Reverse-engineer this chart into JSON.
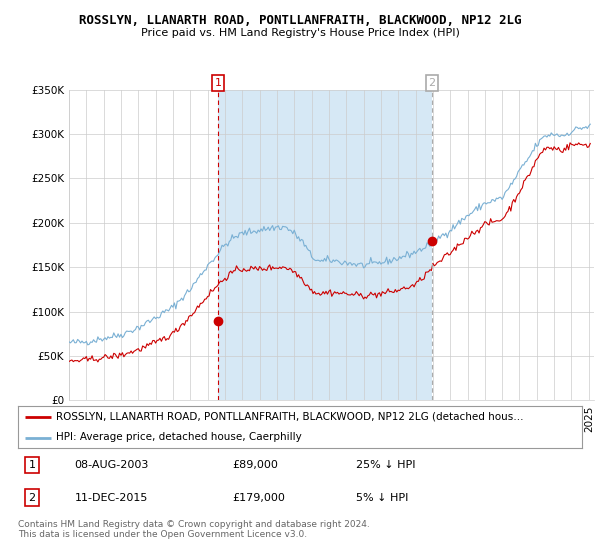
{
  "title": "ROSSLYN, LLANARTH ROAD, PONTLLANFRAITH, BLACKWOOD, NP12 2LG",
  "subtitle": "Price paid vs. HM Land Registry's House Price Index (HPI)",
  "legend_line1": "ROSSLYN, LLANARTH ROAD, PONTLLANFRAITH, BLACKWOOD, NP12 2LG (detached hous…",
  "legend_line2": "HPI: Average price, detached house, Caerphilly",
  "annotation1_label": "1",
  "annotation1_date": "08-AUG-2003",
  "annotation1_price": "£89,000",
  "annotation1_hpi": "25% ↓ HPI",
  "annotation1_year": 2003.6,
  "annotation1_value": 89000,
  "annotation2_label": "2",
  "annotation2_date": "11-DEC-2015",
  "annotation2_price": "£179,000",
  "annotation2_hpi": "5% ↓ HPI",
  "annotation2_year": 2015.95,
  "annotation2_value": 179000,
  "ylabel_max": 350000,
  "hpi_color": "#7ab0d4",
  "price_color": "#cc0000",
  "vline1_color": "#cc0000",
  "vline2_color": "#aaaaaa",
  "shade_color": "#d6e8f5",
  "background_color": "#ffffff",
  "plot_bg_color": "#ffffff",
  "grid_color": "#cccccc",
  "footer": "Contains HM Land Registry data © Crown copyright and database right 2024.\nThis data is licensed under the Open Government Licence v3.0."
}
